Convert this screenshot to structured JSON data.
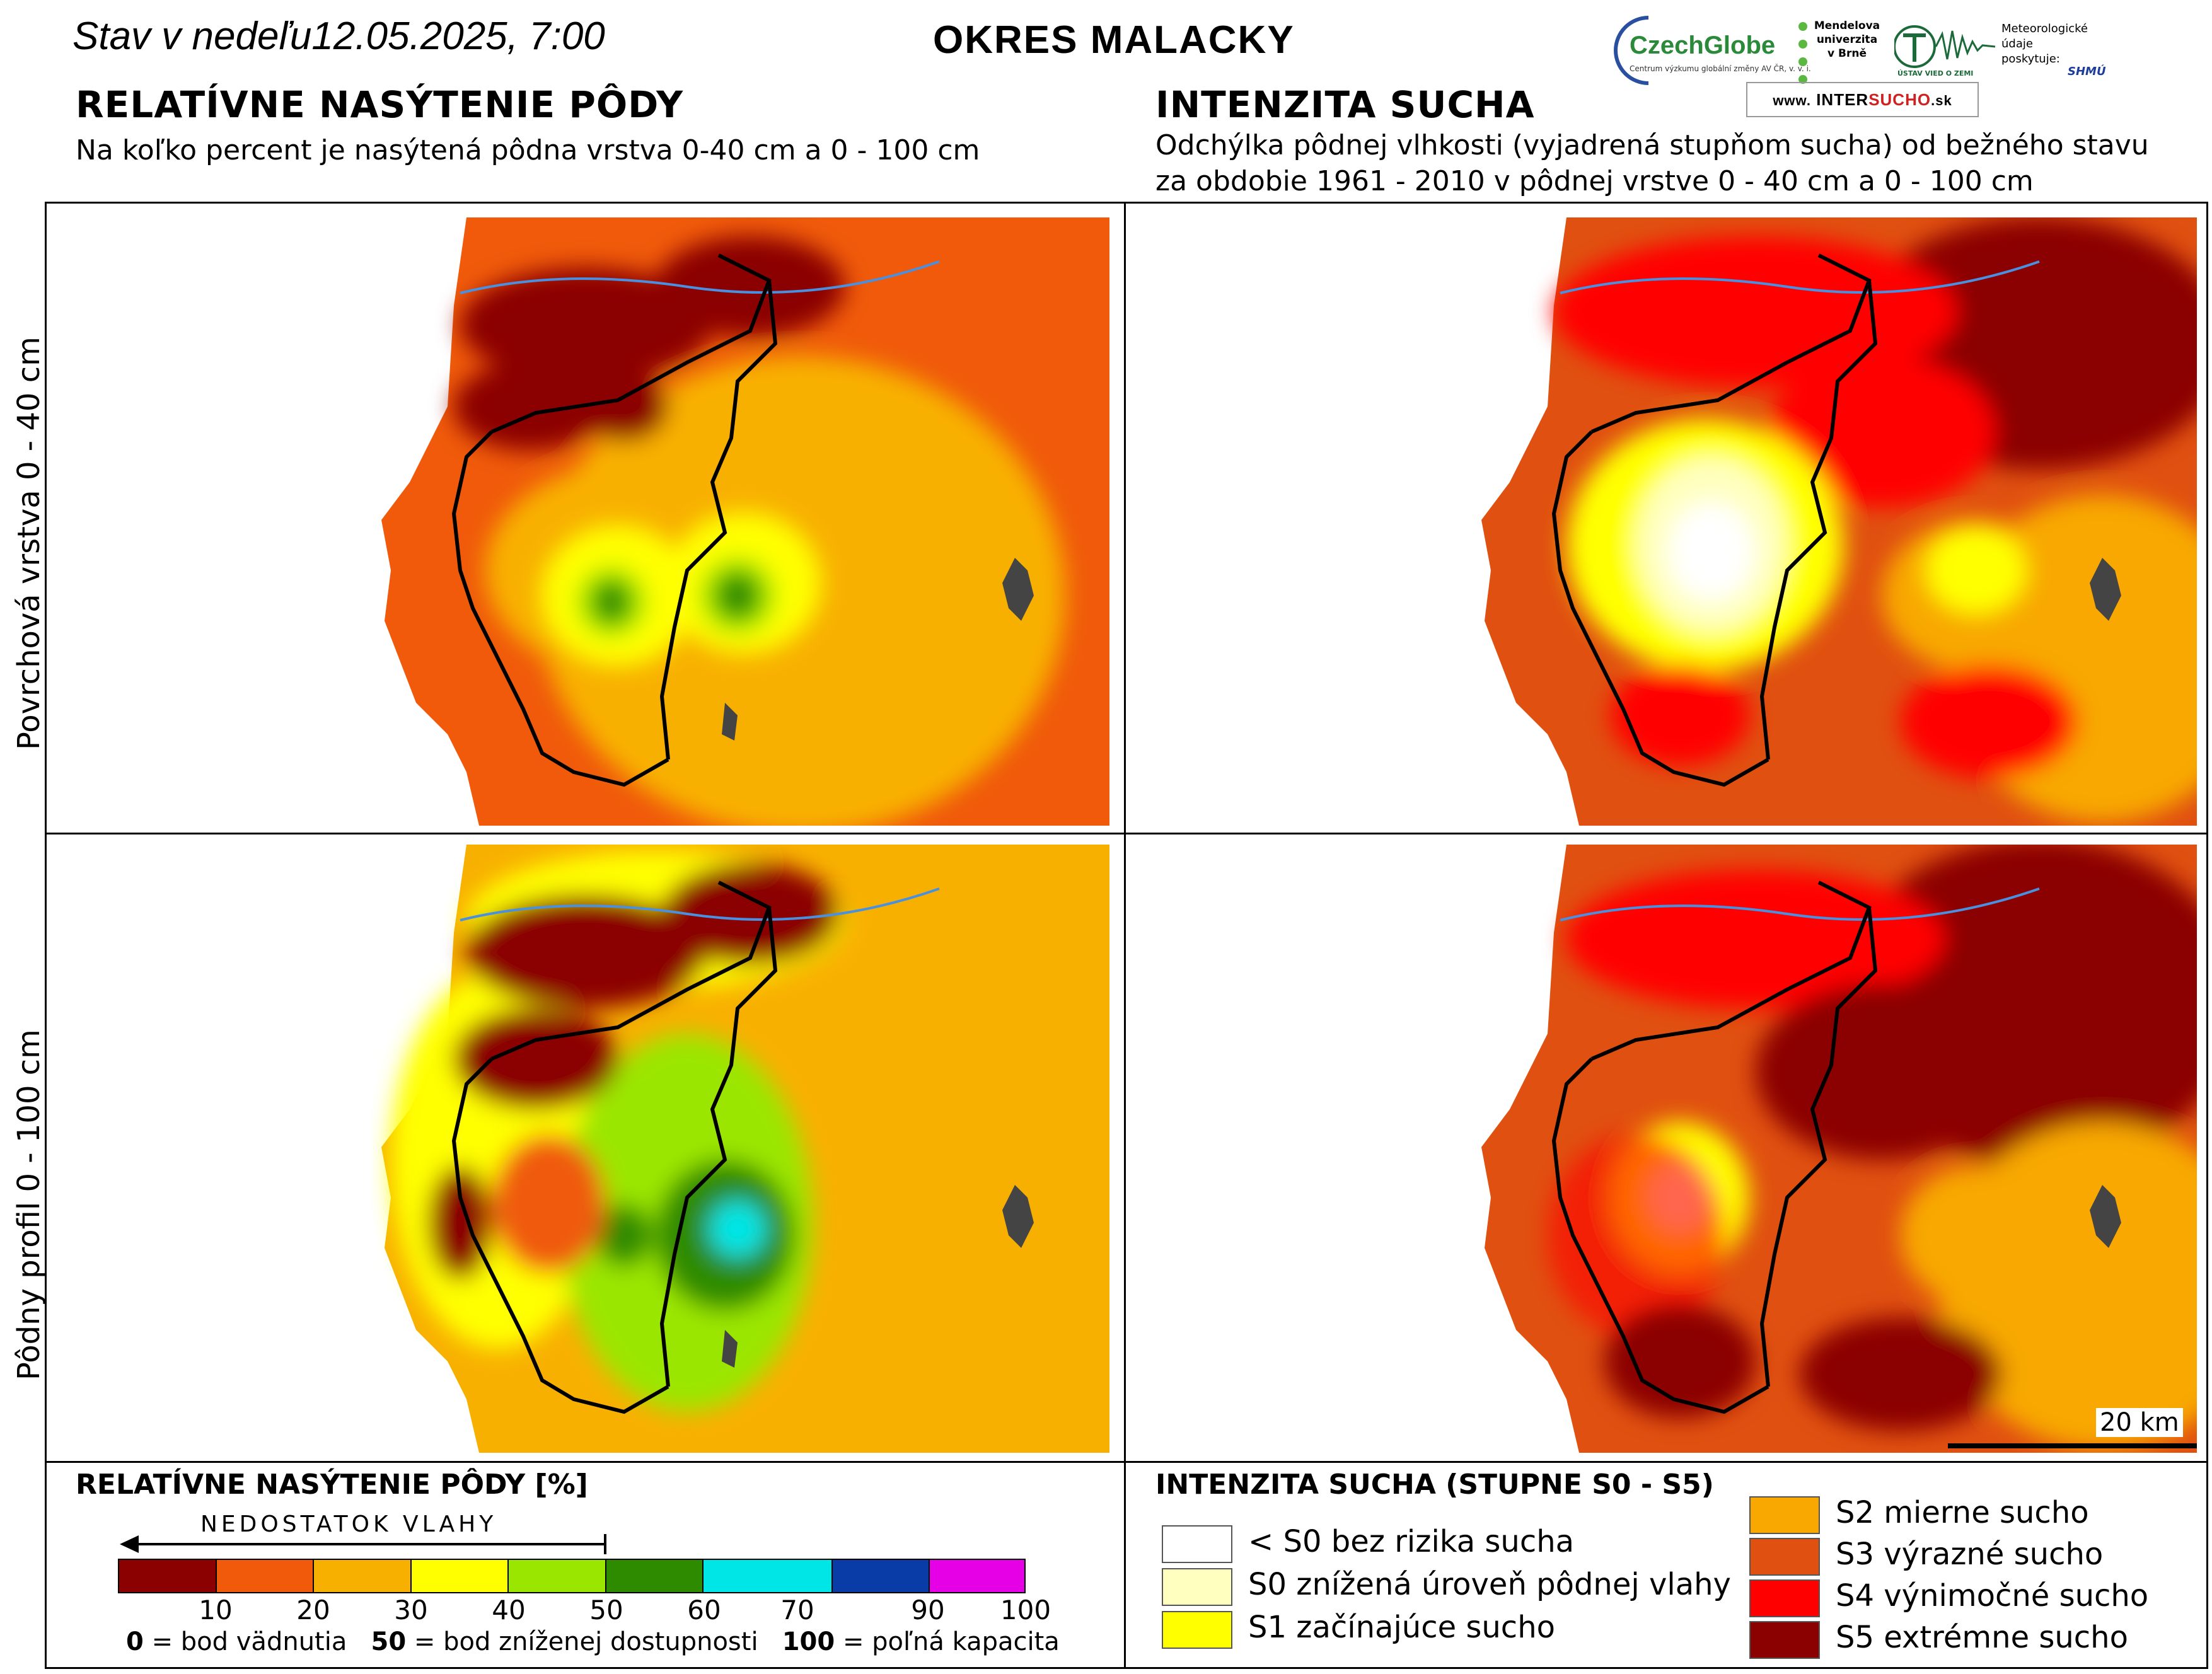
{
  "header": {
    "date": "Stav v nedeľu12.05.2025, 7:00",
    "district": "OKRES  MALACKY",
    "left_title": "RELATÍVNE NASÝTENIE PÔDY",
    "left_subtitle": "Na koľko percent je nasýtená pôdna vrstva 0-40 cm a 0 - 100 cm",
    "right_title": "INTENZITA SUCHA",
    "right_subtitle_1": "Odchýlka pôdnej vlhkosti (vyjadrená stupňom sucha) od bežného stavu",
    "right_subtitle_2": "za obdobie 1961 - 2010 v pôdnej vrstve 0 - 40 cm a 0 - 100 cm"
  },
  "logos": {
    "czechglobe": "CzechGlobe",
    "czechglobe_small": "Centrum výzkumu globální změny AV ČR, v. v. i.",
    "mendelu_1": "Mendelova",
    "mendelu_2": "univerzita",
    "mendelu_3": "v Brně",
    "ustav": "ÚSTAV VIED O ZEMI",
    "met_1": "Meteorologické",
    "met_2": "údaje",
    "met_3": "poskytuje:",
    "shmu": "SHMÚ",
    "intersucho_prefix": "www.",
    "intersucho_a": "INTER",
    "intersucho_b": "SUCHO",
    "intersucho_c": ".sk"
  },
  "rows": {
    "top": "Povrchová vrstva 0 - 40 cm",
    "bottom": "Pôdny profil 0 - 100 cm"
  },
  "scale": {
    "label": "20 km"
  },
  "legend_left": {
    "title": "RELATÍVNE NASÝTENIE PÔDY [%]",
    "arrow_label": "NEDOSTATOK VLAHY",
    "colors": [
      "#8b0000",
      "#f05a0a",
      "#f8b000",
      "#ffff00",
      "#9be600",
      "#2e8b00",
      "#00e6e6",
      "#0a3ca8",
      "#e600e6"
    ],
    "ticks": [
      "10",
      "20",
      "30",
      "40",
      "50",
      "60",
      "70",
      "90",
      "100"
    ],
    "def_0_num": "0",
    "def_0_text": "= bod vädnutia",
    "def_50_num": "50",
    "def_50_text": "= bod zníženej dostupnosti",
    "def_100_num": "100",
    "def_100_text": "= poľná kapacita"
  },
  "legend_right": {
    "title": "INTENZITA SUCHA (STUPNE S0 - S5)",
    "items": [
      {
        "label": "< S0 bez rizika sucha",
        "color": "#ffffff"
      },
      {
        "label": "S0 znížená úroveň pôdnej vlahy",
        "color": "#ffffc0"
      },
      {
        "label": "S1 začínajúce sucho",
        "color": "#ffff00"
      },
      {
        "label": "S2 mierne sucho",
        "color": "#f8a800"
      },
      {
        "label": "S3 výrazné sucho",
        "color": "#e05010"
      },
      {
        "label": "S4 výnimočné sucho",
        "color": "#ff0000"
      },
      {
        "label": "S5 extrémne sucho",
        "color": "#8b0000"
      }
    ]
  }
}
